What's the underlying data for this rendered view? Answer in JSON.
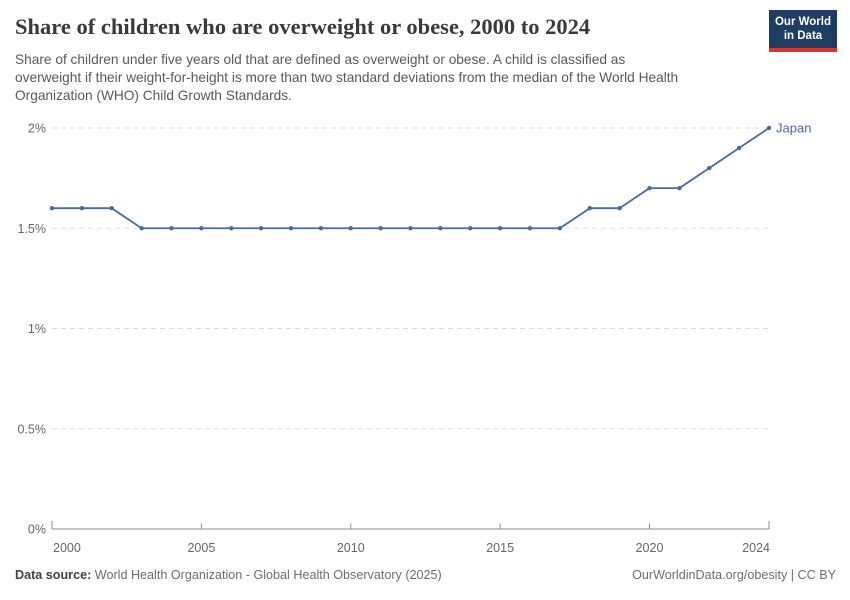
{
  "header": {
    "title": "Share of children who are overweight or obese, 2000 to 2024",
    "subtitle_lines": [
      "Share of children under five years old that are defined as overweight or obese. A child is classified as",
      "overweight if their weight-for-height is more than two standard deviations from the median of the World Health",
      "Organization (WHO) Child Growth Standards."
    ],
    "logo": {
      "line1": "Our World",
      "line2": "in Data"
    }
  },
  "chart_data": {
    "type": "line",
    "title": "Share of children who are overweight or obese, 2000 to 2024",
    "xlabel": "",
    "ylabel": "",
    "xlim": [
      2000,
      2024
    ],
    "ylim": [
      0,
      2
    ],
    "grid": true,
    "legend_position": "end-of-line",
    "x_ticks": [
      2000,
      2005,
      2010,
      2015,
      2020,
      2024
    ],
    "y_ticks": [
      {
        "v": 0,
        "label": "0%"
      },
      {
        "v": 0.5,
        "label": "0.5%"
      },
      {
        "v": 1,
        "label": "1%"
      },
      {
        "v": 1.5,
        "label": "1.5%"
      },
      {
        "v": 2,
        "label": "2%"
      }
    ],
    "series": [
      {
        "name": "Japan",
        "color": "#4c6a9c",
        "x": [
          2000,
          2001,
          2002,
          2003,
          2004,
          2005,
          2006,
          2007,
          2008,
          2009,
          2010,
          2011,
          2012,
          2013,
          2014,
          2015,
          2016,
          2017,
          2018,
          2019,
          2020,
          2021,
          2022,
          2023,
          2024
        ],
        "values": [
          1.6,
          1.6,
          1.6,
          1.5,
          1.5,
          1.5,
          1.5,
          1.5,
          1.5,
          1.5,
          1.5,
          1.5,
          1.5,
          1.5,
          1.5,
          1.5,
          1.5,
          1.5,
          1.6,
          1.6,
          1.7,
          1.7,
          1.8,
          1.9,
          2.0
        ]
      }
    ]
  },
  "colors": {
    "line": "#4c6a9c",
    "grid": "#dddddd",
    "axis": "#8f8f8f",
    "axis_text": "#666666",
    "logo_navy": "#1d3d63",
    "logo_red": "#d8352e"
  },
  "footer": {
    "source_label": "Data source:",
    "source_value": "World Health Organization - Global Health Observatory (2025)",
    "attribution": "OurWorldinData.org/obesity | CC BY"
  }
}
